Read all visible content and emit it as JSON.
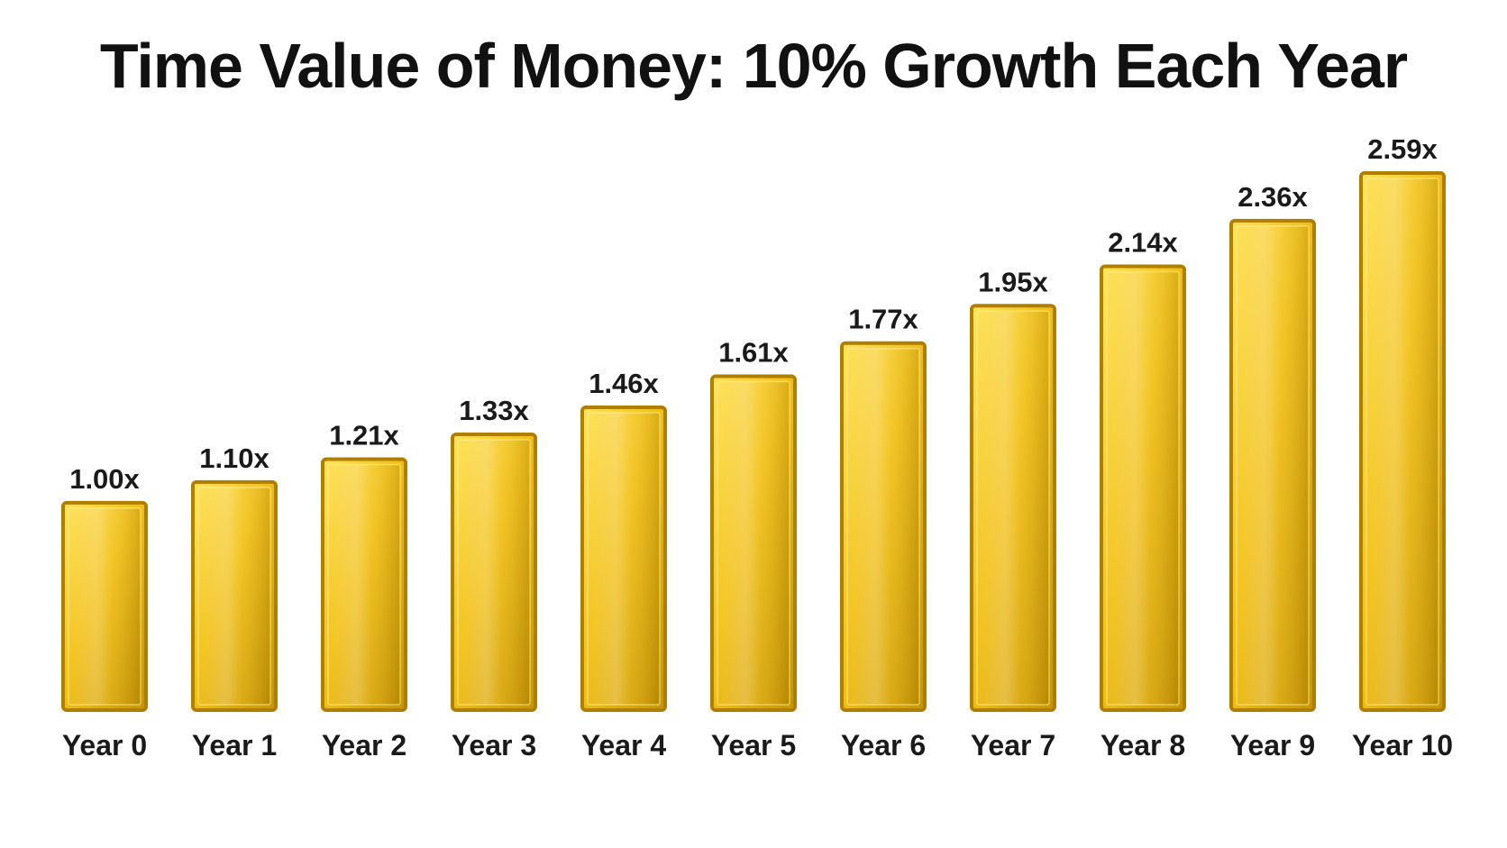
{
  "chart_data": {
    "type": "bar",
    "title": "Time Value of Money: 10% Growth Each Year",
    "xlabel": "",
    "ylabel": "",
    "categories": [
      "Year 0",
      "Year 1",
      "Year 2",
      "Year 3",
      "Year 4",
      "Year 5",
      "Year 6",
      "Year 7",
      "Year 8",
      "Year 9",
      "Year 10"
    ],
    "values": [
      1.0,
      1.1,
      1.21,
      1.33,
      1.46,
      1.61,
      1.77,
      1.95,
      2.14,
      2.36,
      2.59
    ],
    "data_labels": [
      "1.00x",
      "1.10x",
      "1.21x",
      "1.33x",
      "1.46x",
      "1.61x",
      "1.77x",
      "1.95x",
      "2.14x",
      "2.36x",
      "2.59x"
    ],
    "ylim": [
      0,
      2.59
    ],
    "grid": false,
    "legend": "none",
    "colors": {
      "bar_light": "#ffe35a",
      "bar_mid": "#f2c11a",
      "bar_dark": "#c79400",
      "bar_border": "#b07f00"
    }
  }
}
